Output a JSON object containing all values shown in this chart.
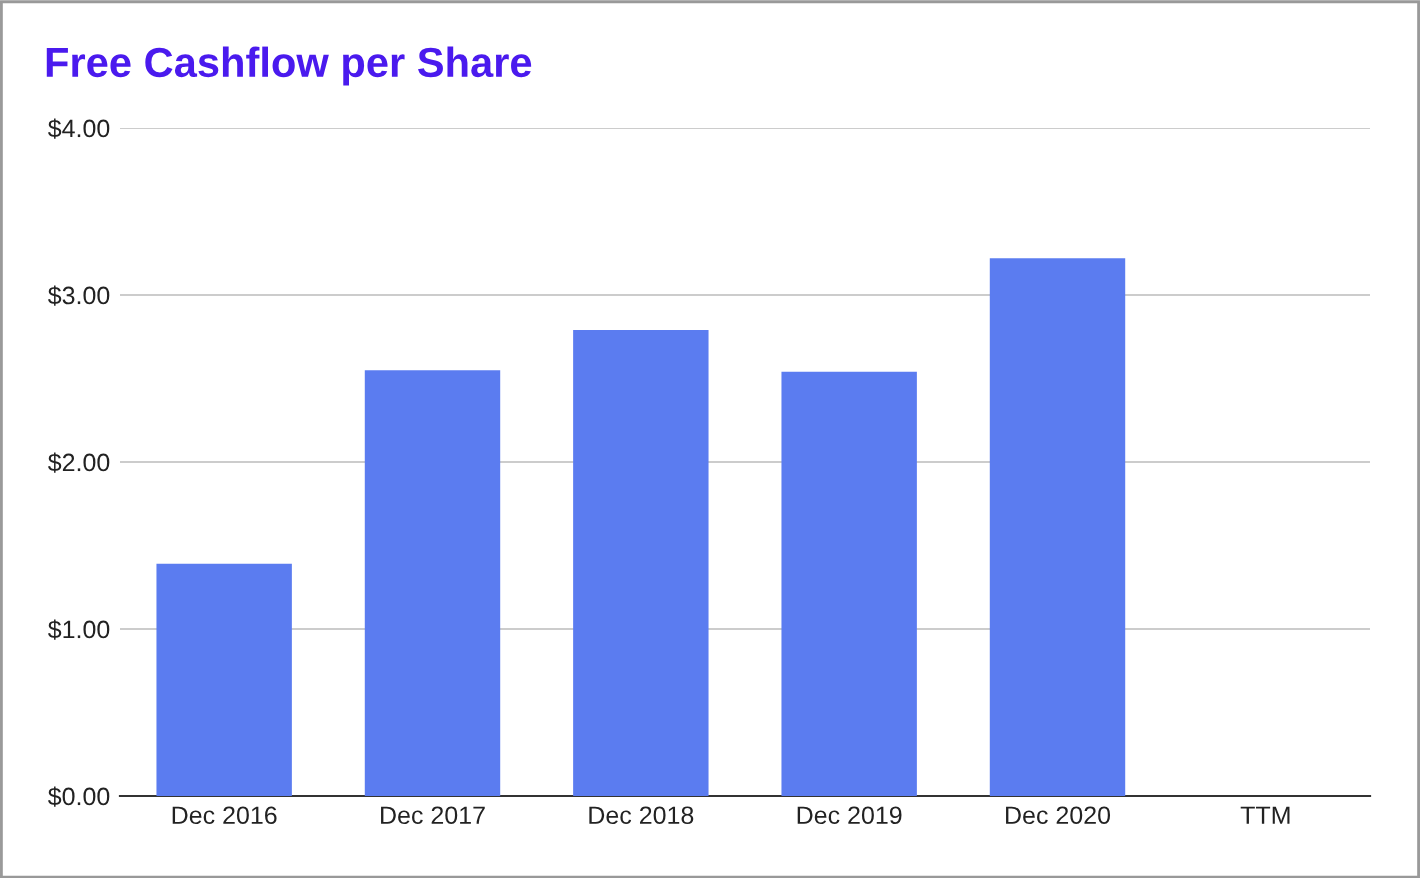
{
  "chart_data": {
    "type": "bar",
    "title": "Free Cashflow per Share",
    "categories": [
      "Dec 2016",
      "Dec 2017",
      "Dec 2018",
      "Dec 2019",
      "Dec 2020",
      "TTM"
    ],
    "values": [
      1.39,
      2.55,
      2.79,
      2.54,
      3.22,
      null
    ],
    "color": "#5b7cf0",
    "ylim": [
      0,
      4
    ],
    "yticks": [
      {
        "value": 0,
        "label": "$0.00"
      },
      {
        "value": 1,
        "label": "$1.00"
      },
      {
        "value": 2,
        "label": "$2.00"
      },
      {
        "value": 3,
        "label": "$3.00"
      },
      {
        "value": 4,
        "label": "$4.00"
      }
    ],
    "grid": "y"
  }
}
